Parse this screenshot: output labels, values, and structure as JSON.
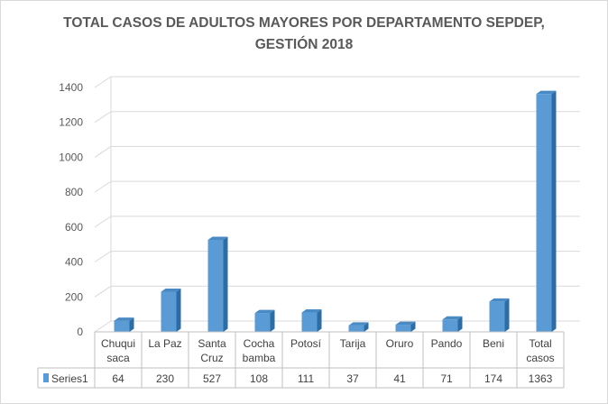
{
  "chart_data": {
    "type": "bar",
    "title_lines": [
      "TOTAL CASOS DE ADULTOS MAYORES POR DEPARTAMENTO SEPDEP,",
      "GESTIÓN 2018"
    ],
    "categories": [
      [
        "Chuqui",
        "saca"
      ],
      [
        "La Paz"
      ],
      [
        "Santa",
        "Cruz"
      ],
      [
        "Cocha",
        "bamba"
      ],
      [
        "Potosí"
      ],
      [
        "Tarija"
      ],
      [
        "Oruro"
      ],
      [
        "Pando"
      ],
      [
        "Beni"
      ],
      [
        "Total",
        "casos"
      ]
    ],
    "series": [
      {
        "name": "Series1",
        "values": [
          64,
          230,
          527,
          108,
          111,
          37,
          41,
          71,
          174,
          1363
        ],
        "color": "#5b9bd5"
      }
    ],
    "yticks": [
      0,
      200,
      400,
      600,
      800,
      1000,
      1200,
      1400
    ],
    "ylim": [
      0,
      1400
    ],
    "grid": true,
    "style": "3d-column",
    "data_table": true,
    "legend": "none"
  }
}
